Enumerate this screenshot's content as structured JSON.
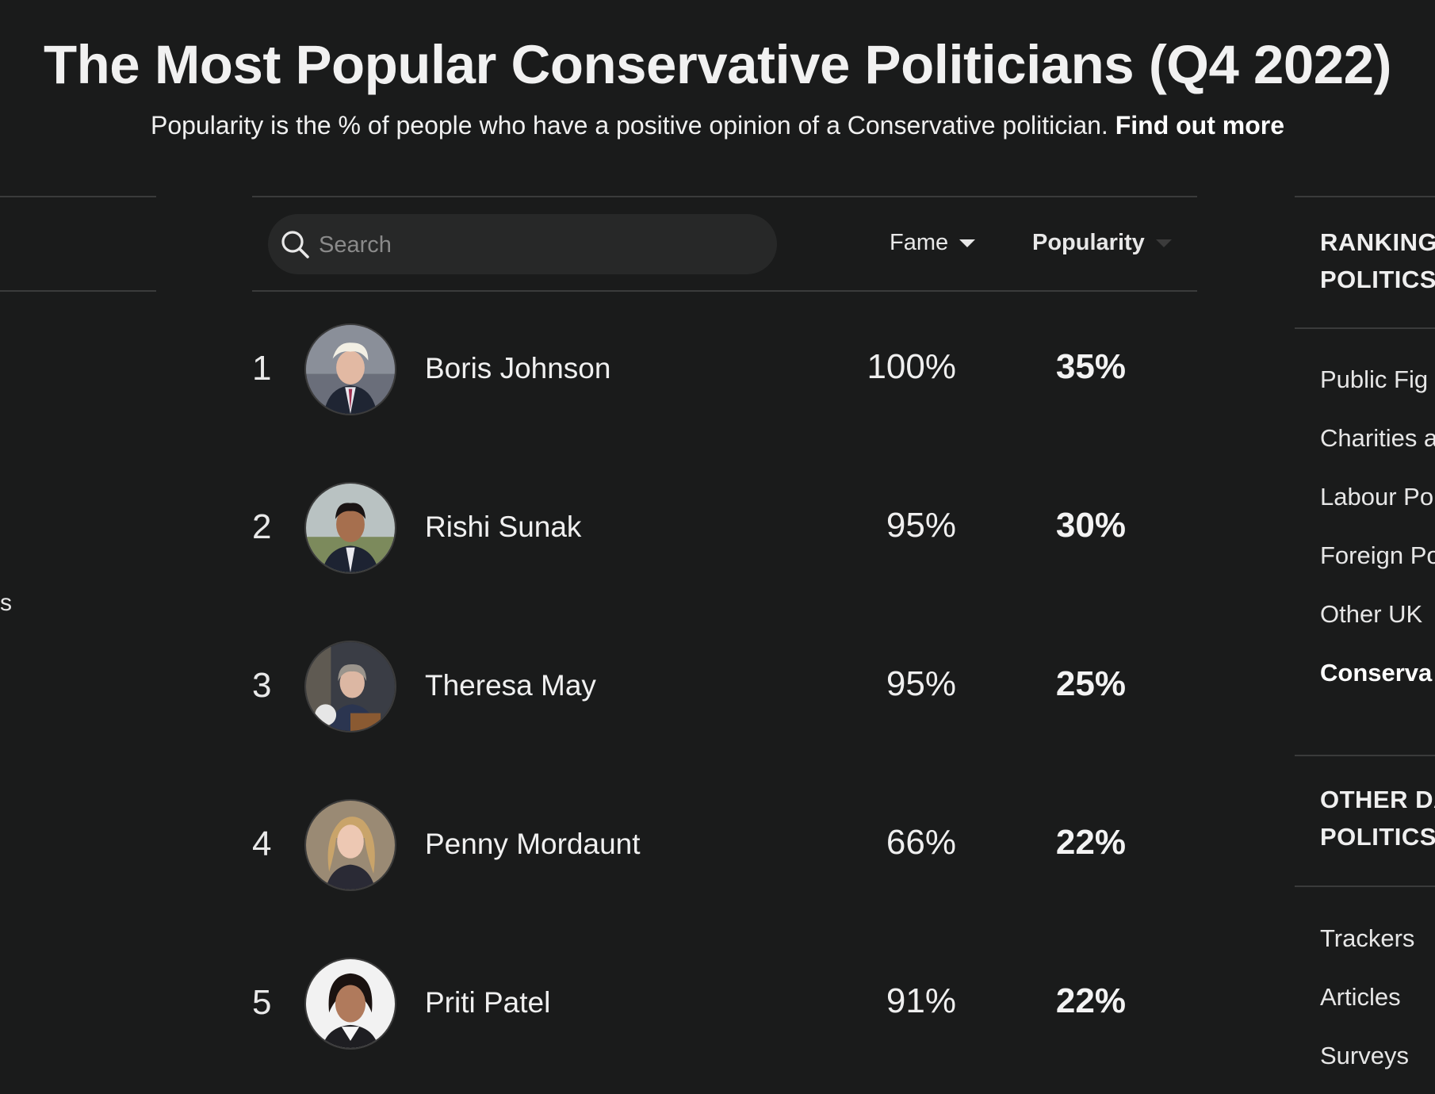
{
  "header": {
    "title": "The Most Popular Conservative Politicians (Q4 2022)",
    "subtitle": "Popularity is the % of people who have a positive opinion of a Conservative politician.",
    "find_out_more": "Find out more"
  },
  "left_stub": {
    "text": "s"
  },
  "search": {
    "placeholder": "Search"
  },
  "sort": {
    "fame_label": "Fame",
    "popularity_label": "Popularity",
    "active": "Popularity"
  },
  "rows": [
    {
      "rank": "1",
      "name": "Boris Johnson",
      "fame": "100%",
      "popularity": "35%"
    },
    {
      "rank": "2",
      "name": "Rishi Sunak",
      "fame": "95%",
      "popularity": "30%"
    },
    {
      "rank": "3",
      "name": "Theresa May",
      "fame": "95%",
      "popularity": "25%"
    },
    {
      "rank": "4",
      "name": "Penny Mordaunt",
      "fame": "66%",
      "popularity": "22%"
    },
    {
      "rank": "5",
      "name": "Priti Patel",
      "fame": "91%",
      "popularity": "22%"
    }
  ],
  "sidebar": {
    "rankings_heading_line1": "RANKING",
    "rankings_heading_line2": "POLITICS",
    "rankings_items": [
      "Public Fig",
      "Charities a",
      "Labour Po",
      "Foreign Po",
      "Other UK",
      "Conserva"
    ],
    "active_item": "Conserva",
    "other_heading_line1": "OTHER DA",
    "other_heading_line2": "POLITICS",
    "other_items": [
      "Trackers",
      "Articles",
      "Surveys"
    ]
  },
  "colors": {
    "background": "#1a1b1b",
    "divider": "#3a3b3b",
    "search_bg": "#272828",
    "text": "#ededed"
  }
}
